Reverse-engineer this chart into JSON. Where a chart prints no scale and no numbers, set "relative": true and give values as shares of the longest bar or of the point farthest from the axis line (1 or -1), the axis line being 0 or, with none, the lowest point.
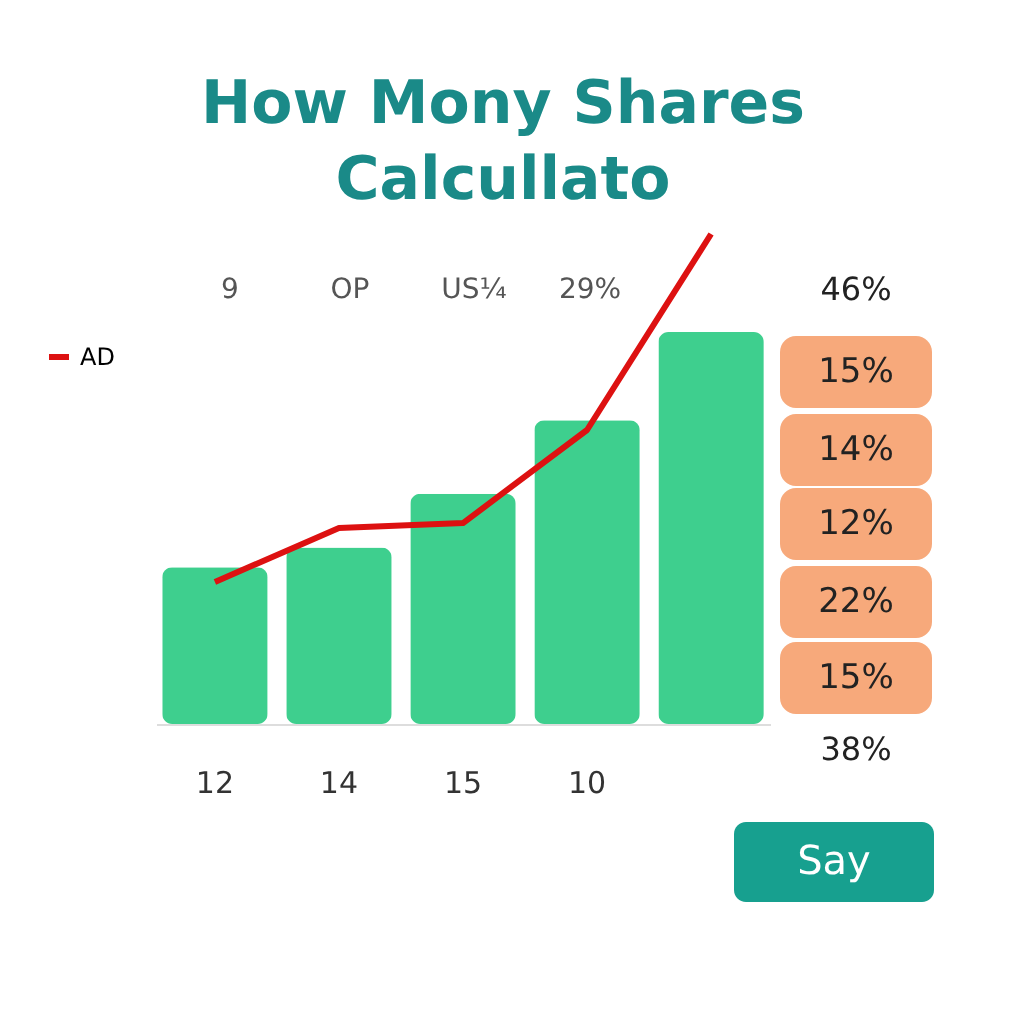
{
  "chart_data": {
    "type": "bar",
    "title": "How Mony Shares Calcullato",
    "relative": true,
    "legend": "top left",
    "categories": [
      "12",
      "14",
      "15",
      "10",
      null
    ],
    "series": [
      {
        "color": "#3ecf8e",
        "values": [
          0.32,
          0.36,
          0.47,
          0.62,
          0.8
        ]
      },
      {
        "type": "line",
        "name": "AD",
        "color": "#dd1111",
        "values": [
          0.29,
          0.4,
          0.41,
          0.6,
          1.0
        ]
      }
    ],
    "annotations": [
      "9",
      "OP",
      "US¼",
      "29%",
      "46%",
      "15%",
      "14%",
      "12%",
      "22%",
      "15%",
      "38%",
      "Say"
    ]
  }
}
